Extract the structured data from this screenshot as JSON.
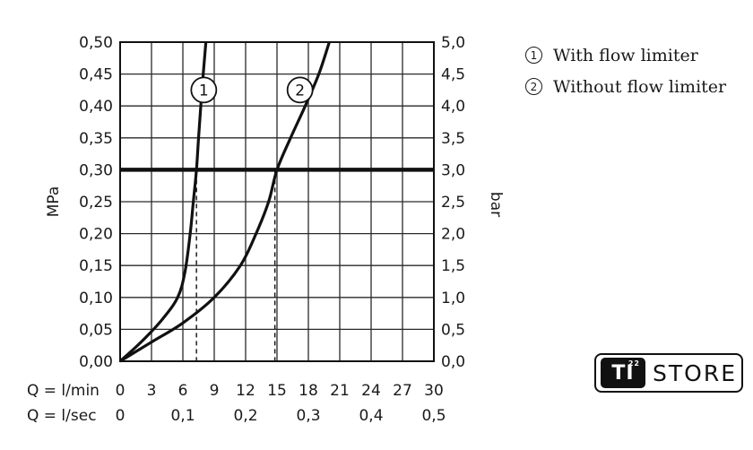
{
  "chart_data": {
    "type": "line",
    "ylabel_left": "MPa",
    "ylabel_right": "bar",
    "ylim_left": [
      0,
      0.5
    ],
    "ylim_right": [
      0,
      5.0
    ],
    "xlim": [
      0,
      30
    ],
    "grid": true,
    "left_tick_labels": [
      "0,00",
      "0,05",
      "0,10",
      "0,15",
      "0,20",
      "0,25",
      "0,30",
      "0,35",
      "0,40",
      "0,45",
      "0,50"
    ],
    "right_tick_labels": [
      "0,0",
      "0,5",
      "1,0",
      "1,5",
      "2,0",
      "2,5",
      "3,0",
      "3,5",
      "4,0",
      "4,5",
      "5,0"
    ],
    "x_row1": {
      "prefix": "Q = l/min",
      "ticks": [
        {
          "x": 0,
          "label": "0"
        },
        {
          "x": 3,
          "label": "3"
        },
        {
          "x": 6,
          "label": "6"
        },
        {
          "x": 9,
          "label": "9"
        },
        {
          "x": 12,
          "label": "12"
        },
        {
          "x": 15,
          "label": "15"
        },
        {
          "x": 18,
          "label": "18"
        },
        {
          "x": 21,
          "label": "21"
        },
        {
          "x": 24,
          "label": "24"
        },
        {
          "x": 27,
          "label": "27"
        },
        {
          "x": 30,
          "label": "30"
        }
      ]
    },
    "x_row2": {
      "prefix": "Q = l/sec",
      "ticks": [
        {
          "x": 0,
          "label": "0"
        },
        {
          "x": 6,
          "label": "0,1"
        },
        {
          "x": 12,
          "label": "0,2"
        },
        {
          "x": 18,
          "label": "0,3"
        },
        {
          "x": 24,
          "label": "0,4"
        },
        {
          "x": 30,
          "label": "0,5"
        }
      ]
    },
    "reference_line": {
      "y": 0.3
    },
    "series": [
      {
        "name": "1",
        "x": [
          0,
          2,
          4,
          5.5,
          6.2,
          6.7,
          7.0,
          7.3,
          7.5,
          7.8,
          8.2
        ],
        "y": [
          0,
          0.03,
          0.065,
          0.1,
          0.14,
          0.2,
          0.25,
          0.3,
          0.35,
          0.42,
          0.5
        ],
        "label_at": {
          "x": 8.0,
          "y": 0.425
        },
        "drop_x": 7.3
      },
      {
        "name": "2",
        "x": [
          0,
          3,
          6,
          9,
          11.5,
          13,
          14.2,
          15.0,
          16.3,
          17.7,
          19.0,
          20.0
        ],
        "y": [
          0,
          0.03,
          0.06,
          0.1,
          0.15,
          0.2,
          0.25,
          0.3,
          0.35,
          0.4,
          0.45,
          0.5
        ],
        "label_at": {
          "x": 17.2,
          "y": 0.425
        },
        "drop_x": 14.8
      }
    ]
  },
  "legend": [
    {
      "marker": "1",
      "text": "With flow limiter"
    },
    {
      "marker": "2",
      "text": "Without flow limiter"
    }
  ],
  "logo": {
    "mark": "TI",
    "sup": "22",
    "word": "STORE"
  }
}
